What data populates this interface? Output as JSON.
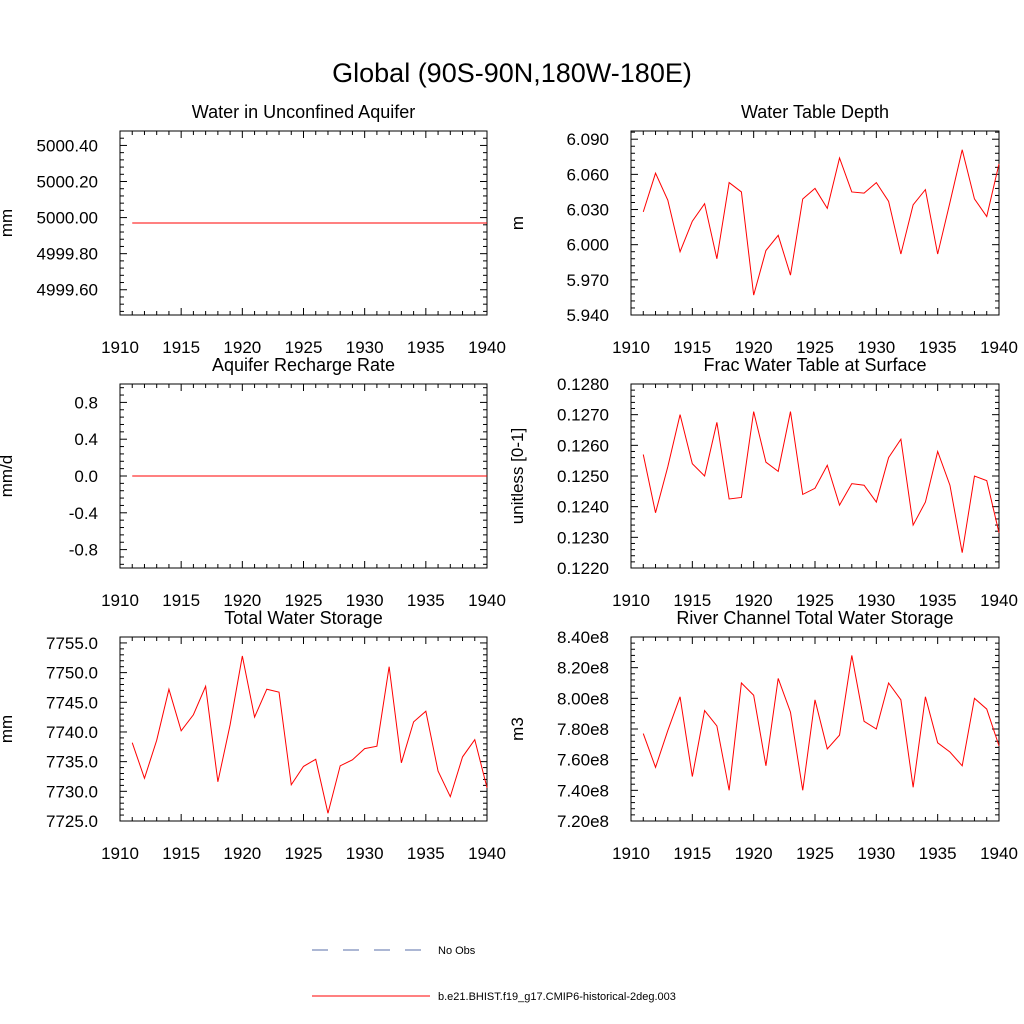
{
  "figure": {
    "title": "Global (90S-90N,180W-180E)"
  },
  "colors": {
    "series": "#ff0000",
    "obs": "#5a6fa8",
    "axis": "#000000"
  },
  "legend": {
    "items": [
      {
        "label": "No Obs",
        "style": "dashed",
        "color": "#5a6fa8"
      },
      {
        "label": "b.e21.BHIST.f19_g17.CMIP6-historical-2deg.003",
        "style": "solid",
        "color": "#ff0000"
      }
    ]
  },
  "chart_data": [
    {
      "type": "line",
      "title": "Water in Unconfined Aquifer",
      "ylabel": "mm",
      "xlim": [
        1910,
        1940
      ],
      "ylim": [
        4999.46,
        5000.48
      ],
      "x_ticks": [
        "1910",
        "1915",
        "1920",
        "1925",
        "1930",
        "1935",
        "1940"
      ],
      "y_ticks": [
        "5000.40",
        "5000.20",
        "5000.00",
        "4999.80",
        "4999.60"
      ],
      "y_tick_values": [
        5000.4,
        5000.2,
        5000.0,
        4999.8,
        4999.6
      ],
      "grid": false,
      "x": [
        1911,
        1912,
        1913,
        1914,
        1915,
        1916,
        1917,
        1918,
        1919,
        1920,
        1921,
        1922,
        1923,
        1924,
        1925,
        1926,
        1927,
        1928,
        1929,
        1930,
        1931,
        1932,
        1933,
        1934,
        1935,
        1936,
        1937,
        1938,
        1939,
        1940
      ],
      "series": [
        {
          "values": [
            4999.97,
            4999.97,
            4999.97,
            4999.97,
            4999.97,
            4999.97,
            4999.97,
            4999.97,
            4999.97,
            4999.97,
            4999.97,
            4999.97,
            4999.97,
            4999.97,
            4999.97,
            4999.97,
            4999.97,
            4999.97,
            4999.97,
            4999.97,
            4999.97,
            4999.97,
            4999.97,
            4999.97,
            4999.97,
            4999.97,
            4999.97,
            4999.97,
            4999.97,
            4999.97
          ]
        }
      ]
    },
    {
      "type": "line",
      "title": "Water Table Depth",
      "ylabel": "m",
      "xlim": [
        1910,
        1940
      ],
      "ylim": [
        5.94,
        6.097
      ],
      "x_ticks": [
        "1910",
        "1915",
        "1920",
        "1925",
        "1930",
        "1935",
        "1940"
      ],
      "y_ticks": [
        "6.090",
        "6.060",
        "6.030",
        "6.000",
        "5.970",
        "5.940"
      ],
      "y_tick_values": [
        6.09,
        6.06,
        6.03,
        6.0,
        5.97,
        5.94
      ],
      "grid": false,
      "x": [
        1911,
        1912,
        1913,
        1914,
        1915,
        1916,
        1917,
        1918,
        1919,
        1920,
        1921,
        1922,
        1923,
        1924,
        1925,
        1926,
        1927,
        1928,
        1929,
        1930,
        1931,
        1932,
        1933,
        1934,
        1935,
        1936,
        1937,
        1938,
        1939,
        1940
      ],
      "series": [
        {
          "values": [
            6.028,
            6.061,
            6.038,
            5.994,
            6.02,
            6.035,
            5.988,
            6.053,
            6.045,
            5.957,
            5.995,
            6.008,
            5.974,
            6.039,
            6.048,
            6.031,
            6.074,
            6.045,
            6.044,
            6.053,
            6.037,
            5.992,
            6.034,
            6.047,
            5.992,
            6.036,
            6.081,
            6.039,
            6.024,
            6.069
          ]
        }
      ]
    },
    {
      "type": "line",
      "title": "Aquifer Recharge Rate",
      "ylabel": "mm/d",
      "xlim": [
        1910,
        1940
      ],
      "ylim": [
        -1.0,
        1.0
      ],
      "x_ticks": [
        "1910",
        "1915",
        "1920",
        "1925",
        "1930",
        "1935",
        "1940"
      ],
      "y_ticks": [
        "0.8",
        "0.4",
        "0.0",
        "-0.4",
        "-0.8"
      ],
      "y_tick_values": [
        0.8,
        0.4,
        0.0,
        -0.4,
        -0.8
      ],
      "grid": false,
      "x": [
        1911,
        1912,
        1913,
        1914,
        1915,
        1916,
        1917,
        1918,
        1919,
        1920,
        1921,
        1922,
        1923,
        1924,
        1925,
        1926,
        1927,
        1928,
        1929,
        1930,
        1931,
        1932,
        1933,
        1934,
        1935,
        1936,
        1937,
        1938,
        1939,
        1940
      ],
      "series": [
        {
          "values": [
            0,
            0,
            0,
            0,
            0,
            0,
            0,
            0,
            0,
            0,
            0,
            0,
            0,
            0,
            0,
            0,
            0,
            0,
            0,
            0,
            0,
            0,
            0,
            0,
            0,
            0,
            0,
            0,
            0,
            0
          ]
        }
      ]
    },
    {
      "type": "line",
      "title": "Frac Water Table at Surface",
      "ylabel": "unitless [0-1]",
      "xlim": [
        1910,
        1940
      ],
      "ylim": [
        0.122,
        0.128
      ],
      "x_ticks": [
        "1910",
        "1915",
        "1920",
        "1925",
        "1930",
        "1935",
        "1940"
      ],
      "y_ticks": [
        "0.1280",
        "0.1270",
        "0.1260",
        "0.1250",
        "0.1240",
        "0.1230",
        "0.1220"
      ],
      "y_tick_values": [
        0.128,
        0.127,
        0.126,
        0.125,
        0.124,
        0.123,
        0.122
      ],
      "grid": false,
      "x": [
        1911,
        1912,
        1913,
        1914,
        1915,
        1916,
        1917,
        1918,
        1919,
        1920,
        1921,
        1922,
        1923,
        1924,
        1925,
        1926,
        1927,
        1928,
        1929,
        1930,
        1931,
        1932,
        1933,
        1934,
        1935,
        1936,
        1937,
        1938,
        1939,
        1940
      ],
      "series": [
        {
          "values": [
            0.1257,
            0.1238,
            0.1253,
            0.127,
            0.1254,
            0.125,
            0.12675,
            0.12425,
            0.1243,
            0.1271,
            0.12545,
            0.12515,
            0.1271,
            0.1244,
            0.1246,
            0.12535,
            0.12405,
            0.12475,
            0.1247,
            0.12415,
            0.1256,
            0.1262,
            0.1234,
            0.12415,
            0.1258,
            0.1247,
            0.1225,
            0.125,
            0.12485,
            0.12315
          ]
        }
      ]
    },
    {
      "type": "line",
      "title": "Total Water Storage",
      "ylabel": "mm",
      "xlim": [
        1910,
        1940
      ],
      "ylim": [
        7725.0,
        7756.0
      ],
      "x_ticks": [
        "1910",
        "1915",
        "1920",
        "1925",
        "1930",
        "1935",
        "1940"
      ],
      "y_ticks": [
        "7755.0",
        "7750.0",
        "7745.0",
        "7740.0",
        "7735.0",
        "7730.0",
        "7725.0"
      ],
      "y_tick_values": [
        7755.0,
        7750.0,
        7745.0,
        7740.0,
        7735.0,
        7730.0,
        7725.0
      ],
      "grid": false,
      "x": [
        1911,
        1912,
        1913,
        1914,
        1915,
        1916,
        1917,
        1918,
        1919,
        1920,
        1921,
        1922,
        1923,
        1924,
        1925,
        1926,
        1927,
        1928,
        1929,
        1930,
        1931,
        1932,
        1933,
        1934,
        1935,
        1936,
        1937,
        1938,
        1939,
        1940
      ],
      "series": [
        {
          "values": [
            7738.2,
            7732.2,
            7738.6,
            7747.2,
            7740.2,
            7742.9,
            7747.7,
            7731.6,
            7741.2,
            7752.8,
            7742.5,
            7747.2,
            7746.7,
            7731.1,
            7734.2,
            7735.4,
            7726.3,
            7734.3,
            7735.3,
            7737.2,
            7737.6,
            7751.0,
            7734.8,
            7741.7,
            7743.5,
            7733.4,
            7729.1,
            7735.8,
            7738.7,
            7730.6
          ]
        }
      ]
    },
    {
      "type": "line",
      "title": "River Channel Total Water Storage",
      "ylabel": "m3",
      "xlim": [
        1910,
        1940
      ],
      "ylim": [
        720000000.0,
        840000000.0
      ],
      "x_ticks": [
        "1910",
        "1915",
        "1920",
        "1925",
        "1930",
        "1935",
        "1940"
      ],
      "y_ticks": [
        "8.40e8",
        "8.20e8",
        "8.00e8",
        "7.80e8",
        "7.60e8",
        "7.40e8",
        "7.20e8"
      ],
      "y_tick_values": [
        840000000.0,
        820000000.0,
        800000000.0,
        780000000.0,
        760000000.0,
        740000000.0,
        720000000.0
      ],
      "grid": false,
      "x": [
        1911,
        1912,
        1913,
        1914,
        1915,
        1916,
        1917,
        1918,
        1919,
        1920,
        1921,
        1922,
        1923,
        1924,
        1925,
        1926,
        1927,
        1928,
        1929,
        1930,
        1931,
        1932,
        1933,
        1934,
        1935,
        1936,
        1937,
        1938,
        1939,
        1940
      ],
      "series": [
        {
          "values": [
            777000000.0,
            755000000.0,
            779000000.0,
            801000000.0,
            749000000.0,
            792000000.0,
            782000000.0,
            740000000.0,
            810000000.0,
            802000000.0,
            756000000.0,
            813000000.0,
            791000000.0,
            740000000.0,
            799000000.0,
            767000000.0,
            776000000.0,
            828000000.0,
            785000000.0,
            780000000.0,
            810000000.0,
            799000000.0,
            742000000.0,
            801000000.0,
            771000000.0,
            765000000.0,
            756000000.0,
            800000000.0,
            793000000.0,
            769000000.0
          ]
        }
      ]
    }
  ]
}
